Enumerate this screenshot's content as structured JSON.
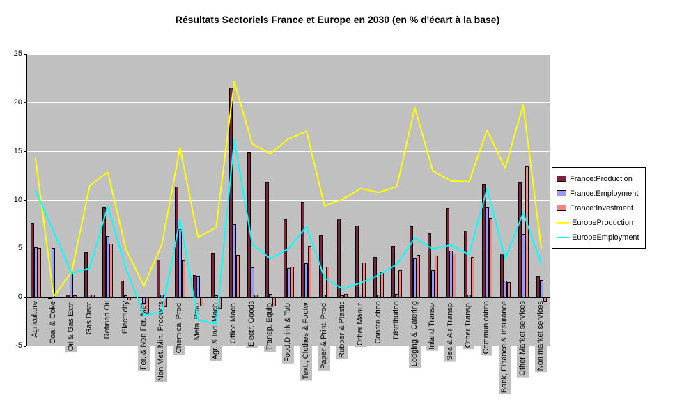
{
  "title": "Résultats Sectoriels France et Europe en 2030 (en % d'écart à la base)",
  "colors": {
    "plot_background": "#c0c0c0",
    "gridline": "#ffffff",
    "axis": "#000000"
  },
  "chart_data": {
    "type": "combo",
    "title": "Résultats Sectoriels France et Europe en 2030 (en % d'écart à la base)",
    "ylim": [
      -5,
      25
    ],
    "yticks": [
      25,
      20,
      15,
      10,
      5,
      0,
      -5
    ],
    "grid": true,
    "legend_position": "right",
    "plot_bg": "#c0c0c0",
    "categories": [
      "Agriculture",
      "Coal & Coke",
      "Oil & Gas Extr.",
      "Gas Distr.",
      "Refined Oil",
      "Electricity",
      "Fer. & Non Fer. Met.",
      "Non Met. Min. Products",
      "Chemical Prod.",
      "Metal Prod.",
      "Agr. & Ind. Mach.",
      "Office Mach.",
      "Electr. Goods",
      "Transp. Equip.",
      "Food,Drink & Tob.",
      "Text., Clothes & Footw.",
      "Paper & Print. Prod.",
      "Rubber & Plastic",
      "Other Manuf.",
      "Construction",
      "Distribution",
      "Lodging & Catering",
      "Inland Transp.",
      "Sea & Air Transp.",
      "Other Transp.",
      "Communication",
      "Bank, Finance & Insurance",
      "Other Market services",
      "Non market services"
    ],
    "series": [
      {
        "name": "France:Production",
        "type": "bar",
        "color": "#802040",
        "values": [
          7.7,
          0,
          0.3,
          4.7,
          9.3,
          1.7,
          0.1,
          3.9,
          11.4,
          2.3,
          4.6,
          21.6,
          15.0,
          11.8,
          8.0,
          9.8,
          6.4,
          8.1,
          7.4,
          4.2,
          5.3,
          7.3,
          6.6,
          9.2,
          6.9,
          11.7,
          4.5,
          11.8,
          2.2
        ]
      },
      {
        "name": "France:Employment",
        "type": "bar",
        "color": "#9999ff",
        "values": [
          5.2,
          5.1,
          2.5,
          0.3,
          6.3,
          0.2,
          -0.6,
          0.3,
          7.0,
          2.2,
          0.2,
          7.5,
          3.1,
          0.4,
          3.0,
          3.5,
          0.3,
          0.2,
          0.3,
          0.3,
          0.4,
          4.0,
          2.8,
          4.8,
          0.3,
          9.3,
          1.7,
          6.5,
          1.8
        ]
      },
      {
        "name": "France:Investment",
        "type": "bar",
        "color": "#ff8080",
        "values": [
          5.1,
          0.1,
          0.2,
          0.3,
          5.5,
          -0.3,
          -1.7,
          -1.0,
          3.8,
          -0.9,
          -1.1,
          4.4,
          0.3,
          -0.9,
          3.2,
          5.3,
          3.2,
          0.4,
          3.6,
          2.6,
          2.8,
          4.4,
          4.3,
          4.5,
          4.2,
          8.2,
          1.6,
          13.5,
          -0.4
        ]
      },
      {
        "name": "EuropeProduction",
        "type": "line",
        "color": "#ffff00",
        "values": [
          14.3,
          0.1,
          2.6,
          11.5,
          12.9,
          5.0,
          1.2,
          5.5,
          15.4,
          6.2,
          7.2,
          22.2,
          15.8,
          14.8,
          16.3,
          17.1,
          9.4,
          10.1,
          11.2,
          10.8,
          11.4,
          19.5,
          13.0,
          12.0,
          11.9,
          17.2,
          13.3,
          19.8,
          5.1
        ]
      },
      {
        "name": "EuropeEmployment",
        "type": "line",
        "color": "#00ffff",
        "values": [
          11.0,
          6.8,
          2.5,
          3.0,
          9.4,
          3.0,
          -1.8,
          -1.5,
          8.0,
          -2.3,
          -2.7,
          16.2,
          5.5,
          4.0,
          5.0,
          7.3,
          2.0,
          0.9,
          1.5,
          2.3,
          3.4,
          6.1,
          5.0,
          5.4,
          4.4,
          11.2,
          4.0,
          8.7,
          3.5
        ]
      }
    ]
  }
}
